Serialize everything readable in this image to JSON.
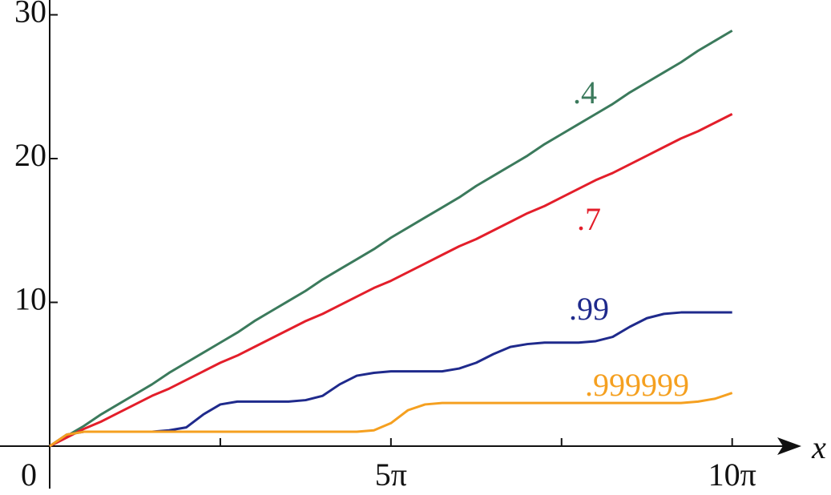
{
  "chart_data": {
    "type": "line",
    "x_label": "x",
    "x": [
      0,
      0.785,
      1.571,
      2.356,
      3.142,
      3.927,
      4.712,
      5.498,
      6.283,
      7.069,
      7.854,
      8.639,
      9.425,
      10.21,
      10.996,
      11.781,
      12.566,
      13.352,
      14.137,
      14.923,
      15.708,
      16.493,
      17.279,
      18.064,
      18.85,
      19.635,
      20.42,
      21.206,
      21.991,
      22.777,
      23.562,
      24.347,
      25.133,
      25.918,
      26.704,
      27.489,
      28.274,
      29.06,
      29.845,
      30.631,
      31.416
    ],
    "series": [
      {
        "name": ".4",
        "color": "#3b7a5c",
        "values": [
          0,
          0.7,
          1.4,
          2.2,
          2.9,
          3.6,
          4.3,
          5.1,
          5.8,
          6.5,
          7.2,
          7.9,
          8.7,
          9.4,
          10.1,
          10.8,
          11.6,
          12.3,
          13.0,
          13.7,
          14.5,
          15.2,
          15.9,
          16.6,
          17.3,
          18.1,
          18.8,
          19.5,
          20.2,
          21.0,
          21.7,
          22.4,
          23.1,
          23.8,
          24.6,
          25.3,
          26.0,
          26.7,
          27.5,
          28.2,
          28.9
        ]
      },
      {
        "name": ".7",
        "color": "#e31e2a",
        "values": [
          0,
          0.6,
          1.2,
          1.7,
          2.3,
          2.9,
          3.5,
          4.0,
          4.6,
          5.2,
          5.8,
          6.3,
          6.9,
          7.5,
          8.1,
          8.7,
          9.2,
          9.8,
          10.4,
          11.0,
          11.5,
          12.1,
          12.7,
          13.3,
          13.9,
          14.4,
          15.0,
          15.6,
          16.2,
          16.7,
          17.3,
          17.9,
          18.5,
          19.0,
          19.6,
          20.2,
          20.8,
          21.4,
          21.9,
          22.5,
          23.1
        ]
      },
      {
        "name": ".99",
        "color": "#1f2a8c",
        "values": [
          0,
          0.8,
          1.0,
          1.0,
          1.0,
          1.0,
          1.0,
          1.1,
          1.3,
          2.2,
          2.9,
          3.1,
          3.1,
          3.1,
          3.1,
          3.2,
          3.5,
          4.3,
          4.9,
          5.1,
          5.2,
          5.2,
          5.2,
          5.2,
          5.4,
          5.8,
          6.4,
          6.9,
          7.1,
          7.2,
          7.2,
          7.2,
          7.3,
          7.6,
          8.3,
          8.9,
          9.2,
          9.3,
          9.3,
          9.3,
          9.3
        ]
      },
      {
        "name": ".999999",
        "color": "#f5a020",
        "values": [
          0,
          0.8,
          1.0,
          1.0,
          1.0,
          1.0,
          1.0,
          1.0,
          1.0,
          1.0,
          1.0,
          1.0,
          1.0,
          1.0,
          1.0,
          1.0,
          1.0,
          1.0,
          1.0,
          1.1,
          1.6,
          2.5,
          2.9,
          3.0,
          3.0,
          3.0,
          3.0,
          3.0,
          3.0,
          3.0,
          3.0,
          3.0,
          3.0,
          3.0,
          3.0,
          3.0,
          3.0,
          3.0,
          3.1,
          3.3,
          3.7
        ]
      }
    ],
    "xlim": [
      0,
      34.6
    ],
    "ylim": [
      0,
      31
    ],
    "xticks": [
      {
        "value": 0,
        "label": "0"
      },
      {
        "value": 15.708,
        "label": "5π"
      },
      {
        "value": 31.416,
        "label": "10π"
      }
    ],
    "xminorticks": [
      7.854,
      23.562
    ],
    "yticks": [
      10,
      20,
      30
    ],
    "grid": false
  }
}
